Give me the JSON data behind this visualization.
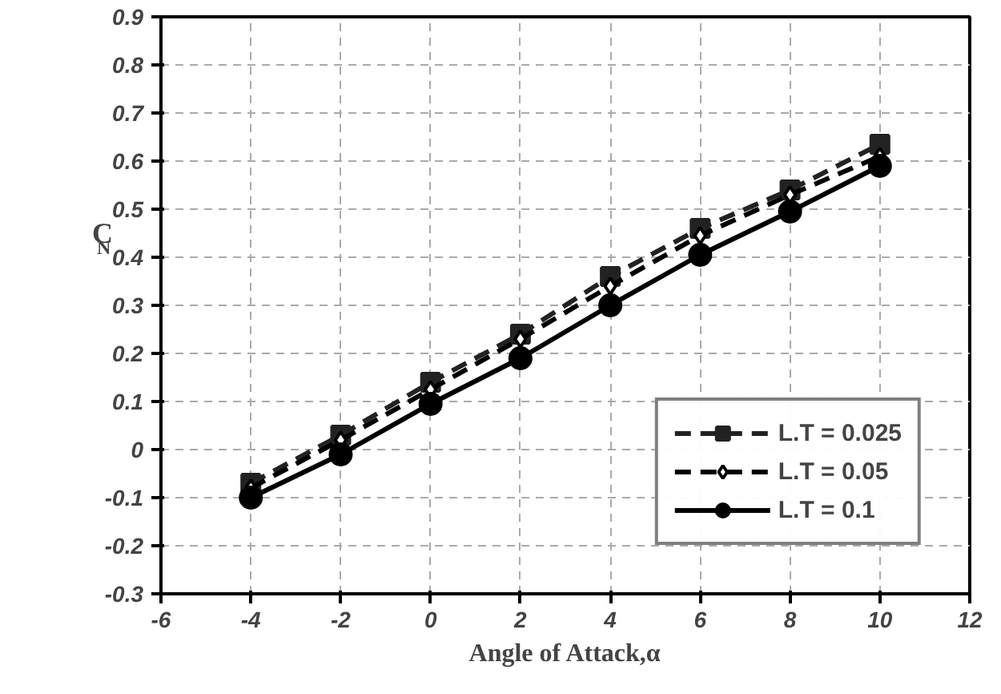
{
  "chart_data": {
    "type": "line",
    "xlabel": "Angle of Attack,α",
    "ylabel": "C$_{N}$",
    "x": [
      -4,
      -2,
      0,
      2,
      4,
      6,
      8,
      10
    ],
    "series": [
      {
        "name": "L.T = 0.025",
        "color": "#222222",
        "marker": "square",
        "line_style": "dashed",
        "values": [
          -0.07,
          0.03,
          0.14,
          0.24,
          0.36,
          0.46,
          0.54,
          0.635
        ]
      },
      {
        "name": "L.T = 0.05",
        "color": "#000000",
        "marker": "diamond",
        "line_style": "dashed",
        "values": [
          -0.08,
          0.02,
          0.125,
          0.23,
          0.34,
          0.445,
          0.53,
          0.61
        ]
      },
      {
        "name": "L.T = 0.1",
        "color": "#000000",
        "marker": "circle",
        "line_style": "solid",
        "values": [
          -0.1,
          -0.01,
          0.095,
          0.19,
          0.3,
          0.405,
          0.495,
          0.59
        ]
      }
    ],
    "xlim": [
      -6,
      12
    ],
    "ylim": [
      -0.3,
      0.9
    ],
    "xticks": [
      -6,
      -4,
      -2,
      0,
      2,
      4,
      6,
      8,
      10,
      12
    ],
    "yticks": [
      {
        "value": -0.3,
        "label": "-0.3"
      },
      {
        "value": -0.2,
        "label": "-0.2"
      },
      {
        "value": -0.1,
        "label": "-0.1"
      },
      0,
      0.1,
      0.2,
      0.3,
      0.4,
      0.5,
      0.6,
      0.7,
      0.8,
      0.9
    ],
    "grid": true,
    "legend": "bottom right"
  }
}
